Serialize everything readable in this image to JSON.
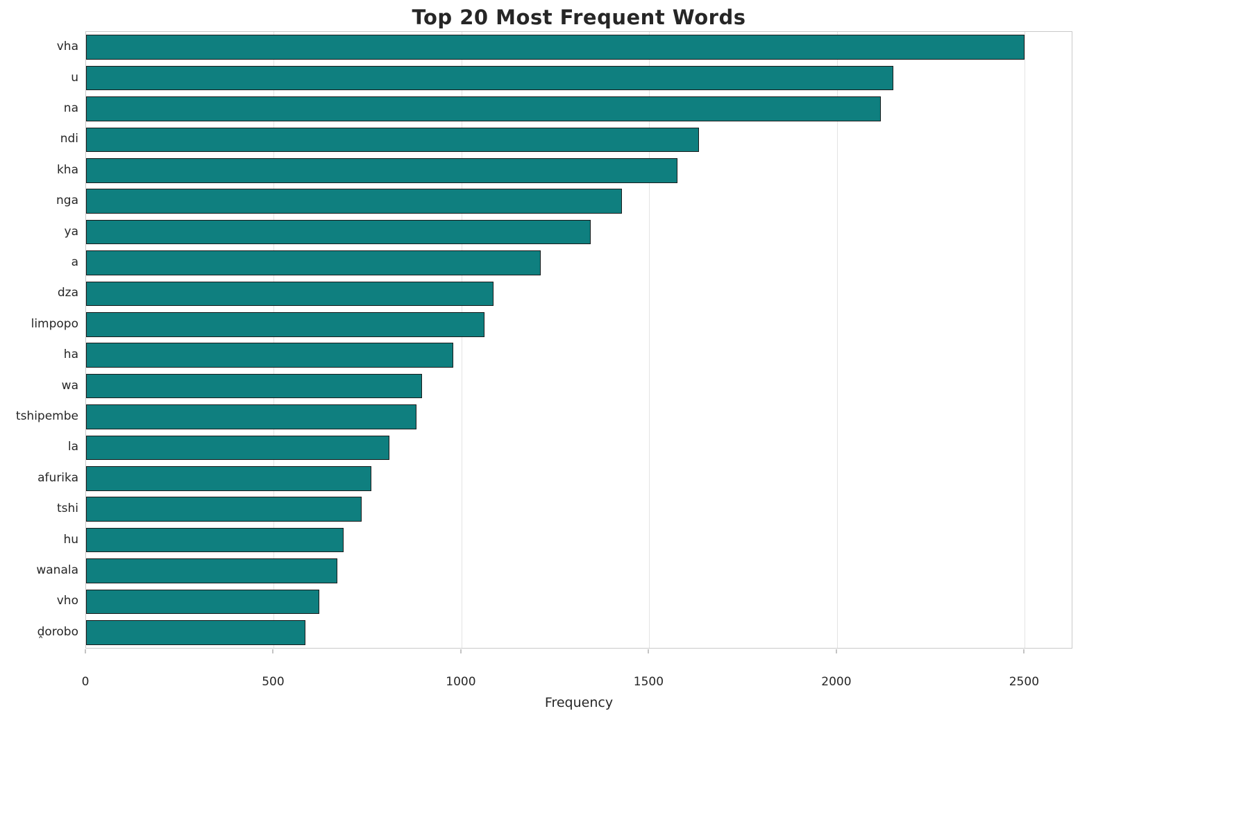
{
  "chart_data": {
    "type": "bar",
    "orientation": "horizontal",
    "title": "Top 20 Most Frequent Words",
    "xlabel": "Frequency",
    "ylabel": "",
    "categories": [
      "vha",
      "u",
      "na",
      "ndi",
      "kha",
      "nga",
      "ya",
      "a",
      "dza",
      "limpopo",
      "ha",
      "wa",
      "tshipembe",
      "la",
      "afurika",
      "tshi",
      "hu",
      "wanala",
      "vho",
      "ḓorobo"
    ],
    "values": [
      2500,
      2150,
      2116,
      1633,
      1575,
      1427,
      1344,
      1210,
      1085,
      1062,
      977,
      895,
      880,
      808,
      760,
      733,
      685,
      670,
      622,
      585
    ],
    "xlim": [
      0,
      2625
    ],
    "x_ticks": [
      0,
      500,
      1000,
      1500,
      2000,
      2500
    ],
    "grid": true,
    "legend": "none",
    "bar_color": "#0f7f7f",
    "bar_edge_color": "#1a1a1a",
    "bar_fraction": 0.8
  }
}
